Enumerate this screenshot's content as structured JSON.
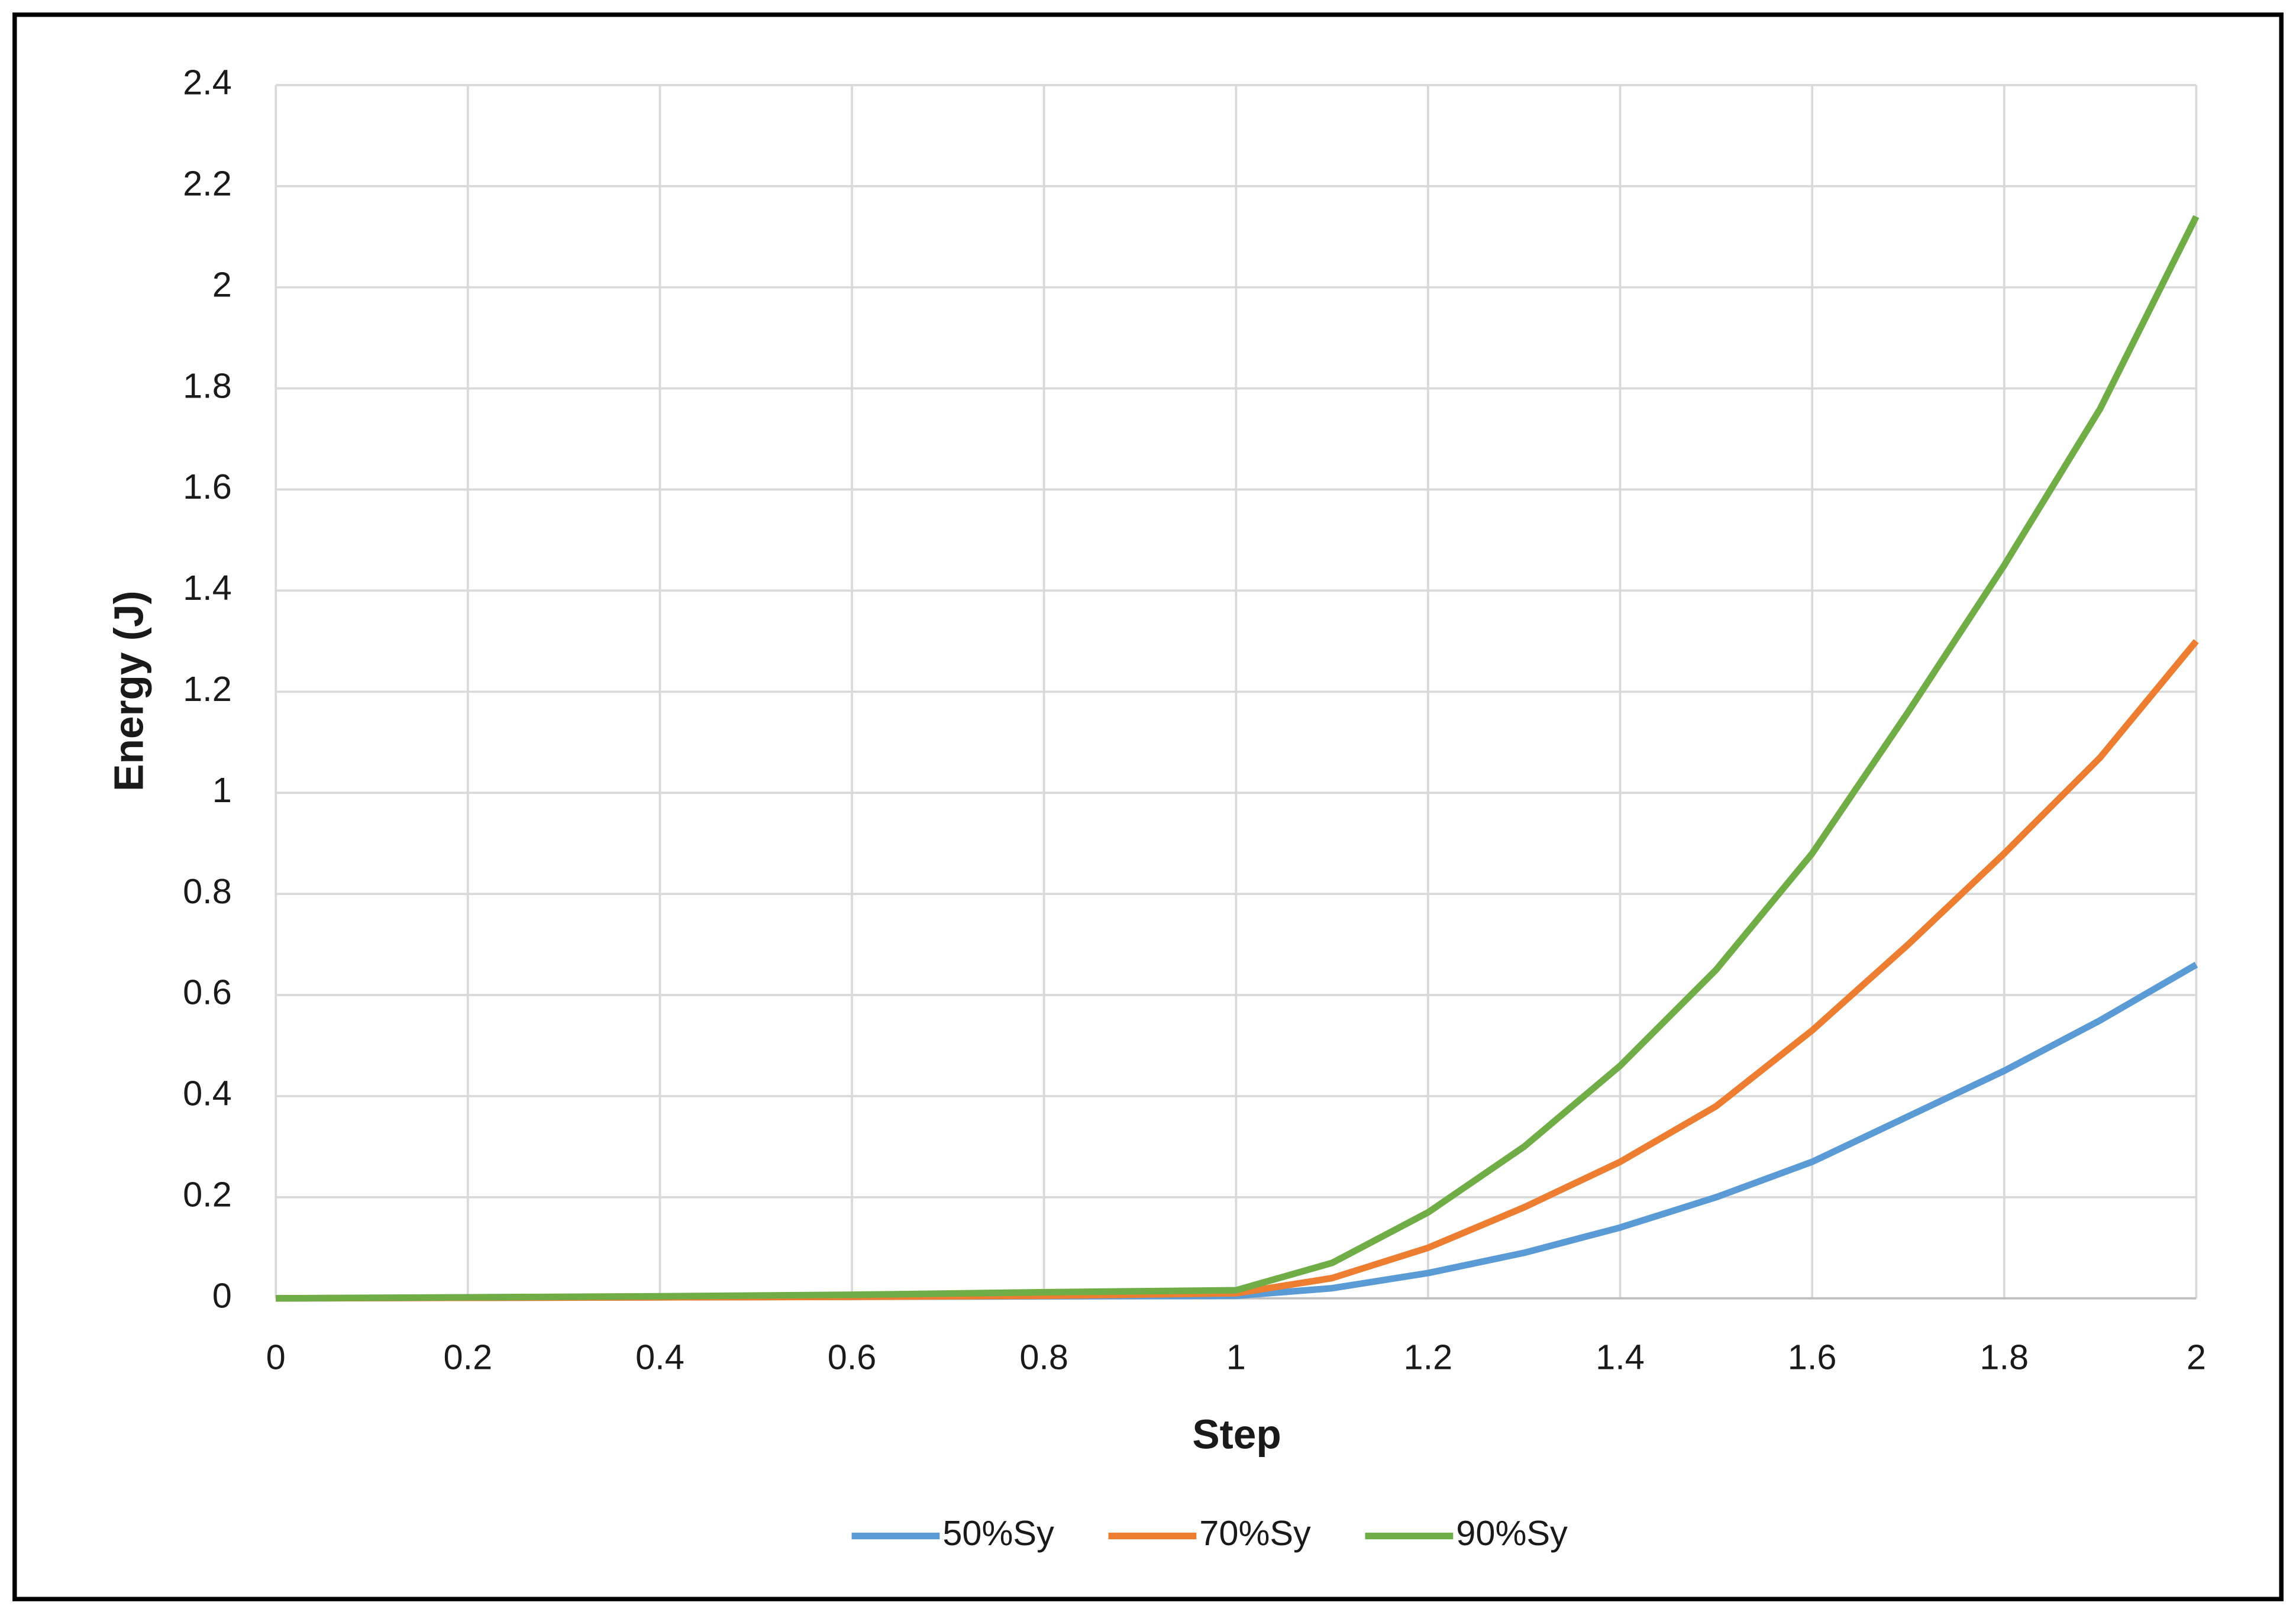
{
  "chart_data": {
    "type": "line",
    "x_label": "Step",
    "y_label": "Energy (J)",
    "x": [
      0,
      0.2,
      0.4,
      0.6,
      0.8,
      1,
      1.1,
      1.2,
      1.3,
      1.4,
      1.5,
      1.6,
      1.7,
      1.8,
      1.9,
      2
    ],
    "series": [
      {
        "name": "50%Sy",
        "color": "#5b9bd5",
        "values": [
          0,
          0.001,
          0.002,
          0.003,
          0.004,
          0.005,
          0.02,
          0.05,
          0.09,
          0.14,
          0.2,
          0.27,
          0.36,
          0.45,
          0.55,
          0.66
        ]
      },
      {
        "name": "70%Sy",
        "color": "#ed7d31",
        "values": [
          0,
          0.001,
          0.002,
          0.003,
          0.005,
          0.01,
          0.04,
          0.1,
          0.18,
          0.27,
          0.38,
          0.53,
          0.7,
          0.88,
          1.07,
          1.3
        ]
      },
      {
        "name": "90%Sy",
        "color": "#70ad47",
        "values": [
          0,
          0.002,
          0.004,
          0.007,
          0.012,
          0.016,
          0.07,
          0.17,
          0.3,
          0.46,
          0.65,
          0.88,
          1.16,
          1.45,
          1.76,
          2.14
        ]
      }
    ],
    "xlim": [
      0,
      2
    ],
    "xticks": [
      0,
      0.2,
      0.4,
      0.6,
      0.8,
      1,
      1.2,
      1.4,
      1.6,
      1.8,
      2
    ],
    "ylim": [
      0,
      2.4
    ],
    "yticks": [
      0,
      0.2,
      0.4,
      0.6,
      0.8,
      1,
      1.2,
      1.4,
      1.6,
      1.8,
      2,
      2.2,
      2.4
    ],
    "grid": true,
    "legend": "bottom"
  }
}
